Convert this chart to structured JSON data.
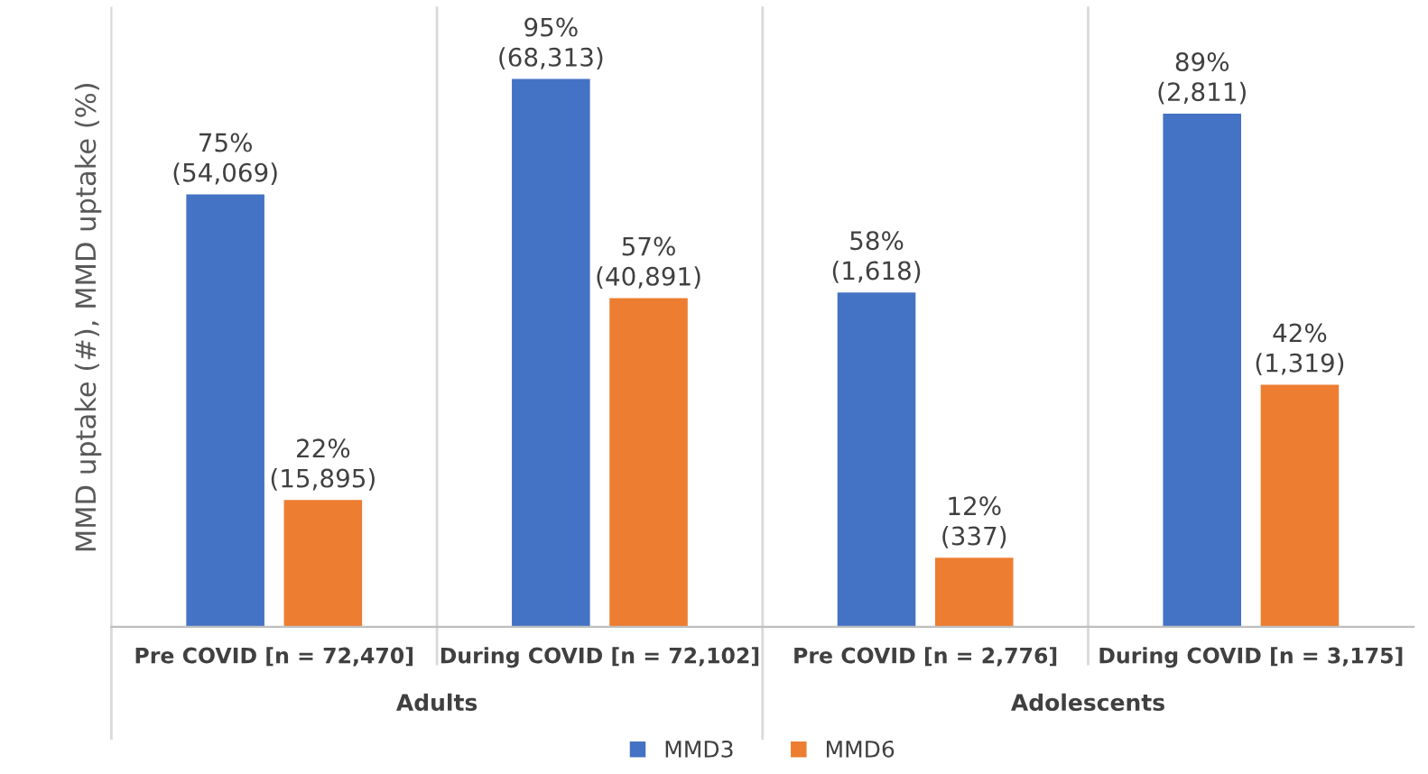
{
  "chart_data": {
    "type": "bar",
    "ylabel": "MMD uptake (#), MMD uptake (%)",
    "categories": [
      "Pre COVID [n = 72,470]",
      "During COVID [n = 72,102]",
      "Pre COVID [n = 2,776]",
      "During COVID [n = 3,175]"
    ],
    "series": [
      {
        "name": "MMD3",
        "color": "#4472c4",
        "values": [
          75,
          95,
          58,
          89
        ],
        "value_labels": [
          "75%\n(54,069)",
          "95%\n(68,313)",
          "58%\n(1,618)",
          "89%\n(2,811)"
        ]
      },
      {
        "name": "MMD6",
        "color": "#ed7d31",
        "values": [
          22,
          57,
          12,
          42
        ],
        "value_labels": [
          "22%\n(15,895)",
          "57%\n(40,891)",
          "12%\n(337)",
          "42%\n(1,319)"
        ]
      }
    ],
    "annotations": [
      "Adults",
      "Adolescents"
    ],
    "legend": "bottom",
    "grid": false
  }
}
